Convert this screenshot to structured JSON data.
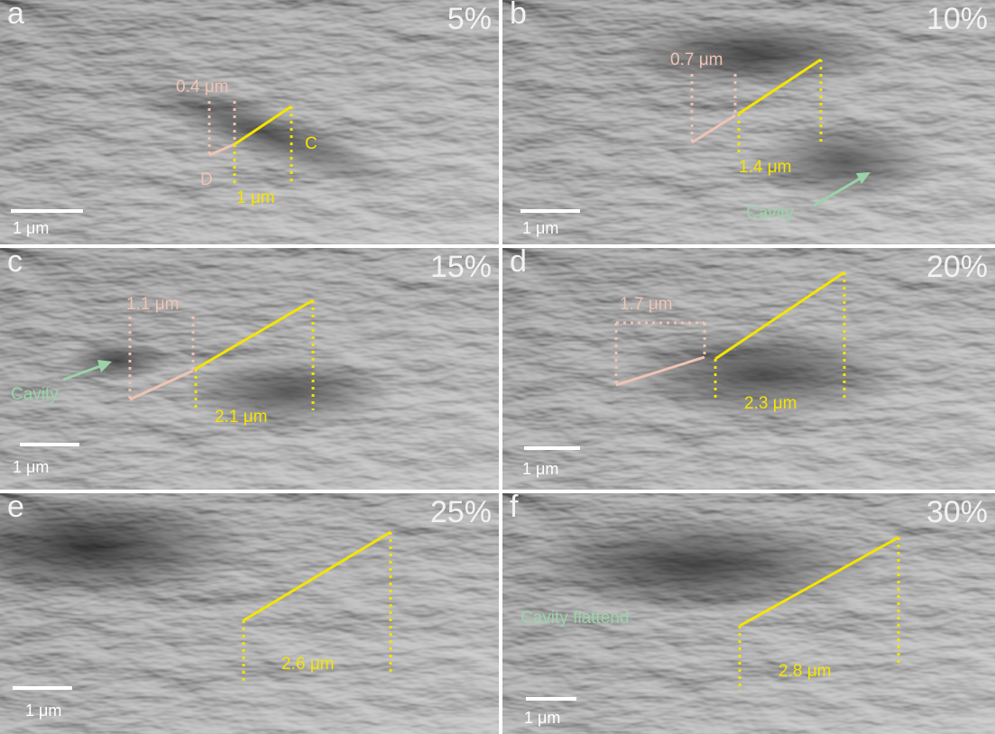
{
  "panels": [
    {
      "letter": "a",
      "strain": "5%",
      "scale": "1 μm",
      "labels": {
        "pink": "0.4 μm",
        "yellow": "1 μm",
        "point_c": "C",
        "point_d": "D"
      }
    },
    {
      "letter": "b",
      "strain": "10%",
      "scale": "1 μm",
      "labels": {
        "pink": "0.7 μm",
        "yellow": "1.4 μm",
        "cavity": "Cavity"
      }
    },
    {
      "letter": "c",
      "strain": "15%",
      "scale": "1 μm",
      "labels": {
        "pink": "1.1 μm",
        "yellow": "2.1 μm",
        "cavity": "Cavity"
      }
    },
    {
      "letter": "d",
      "strain": "20%",
      "scale": "1 μm",
      "labels": {
        "pink": "1.7 μm",
        "yellow": "2.3 μm"
      }
    },
    {
      "letter": "e",
      "strain": "25%",
      "scale": "1 μm",
      "labels": {
        "yellow": "2.6 μm"
      }
    },
    {
      "letter": "f",
      "strain": "30%",
      "scale": "1 μm",
      "labels": {
        "yellow": "2.8 μm",
        "cavity": "Cavity flattend"
      }
    }
  ],
  "colors": {
    "yellow": "#f5e400",
    "pink": "#efc3b3",
    "green": "#9ad3a8",
    "text": "#f2f2f2"
  }
}
